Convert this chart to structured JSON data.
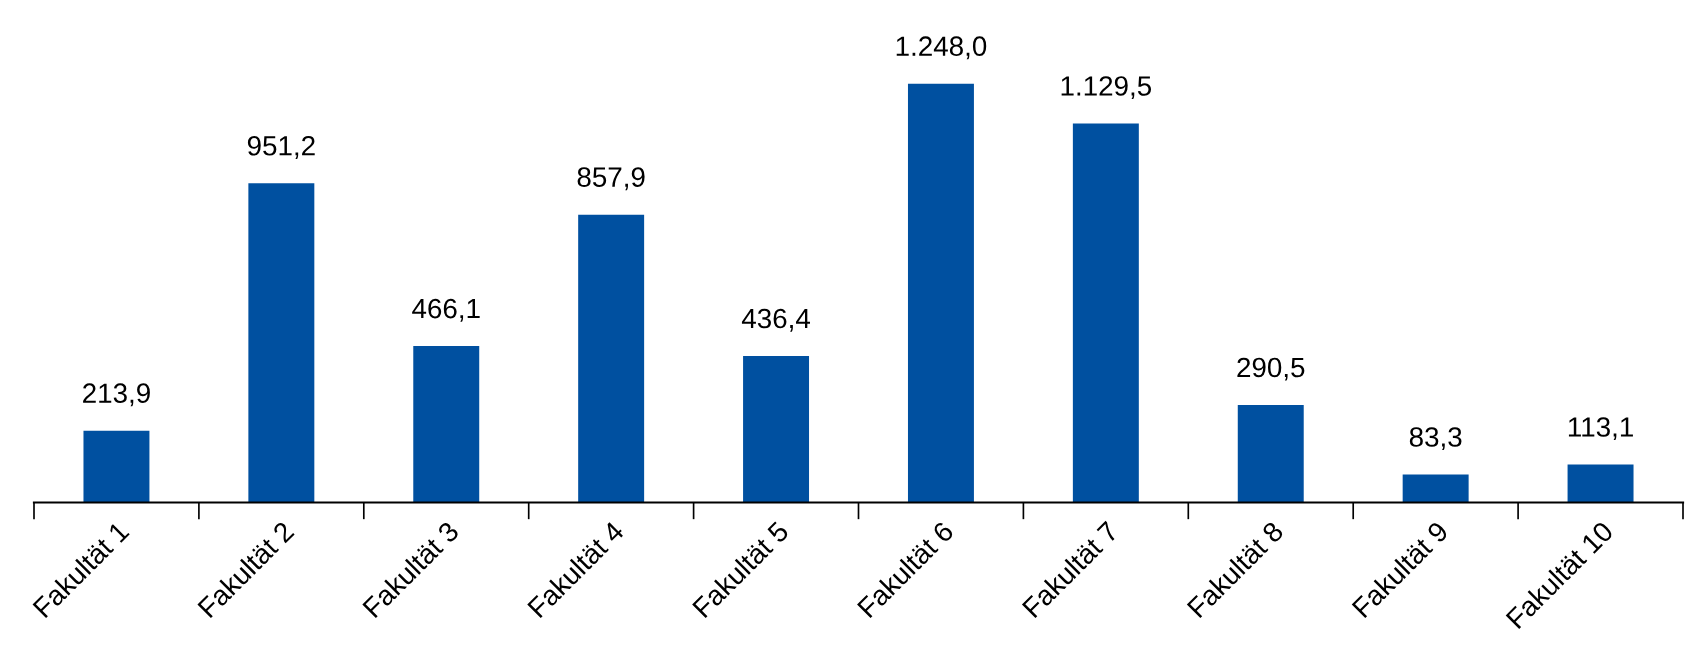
{
  "chart_data": {
    "type": "bar",
    "categories": [
      "Fakultät 1",
      "Fakultät 2",
      "Fakultät 3",
      "Fakultät 4",
      "Fakultät 5",
      "Fakultät 6",
      "Fakultät 7",
      "Fakultät 8",
      "Fakultät 9",
      "Fakultät 10"
    ],
    "values": [
      213.9,
      951.2,
      466.1,
      857.9,
      436.4,
      1248.0,
      1129.5,
      290.5,
      83.3,
      113.1
    ],
    "value_labels": [
      "213,9",
      "951,2",
      "466,1",
      "857,9",
      "436,4",
      "1.248,0",
      "1.129,5",
      "290,5",
      "83,3",
      "113,1"
    ],
    "color": "#0050a0",
    "grid": false,
    "legend": false
  }
}
